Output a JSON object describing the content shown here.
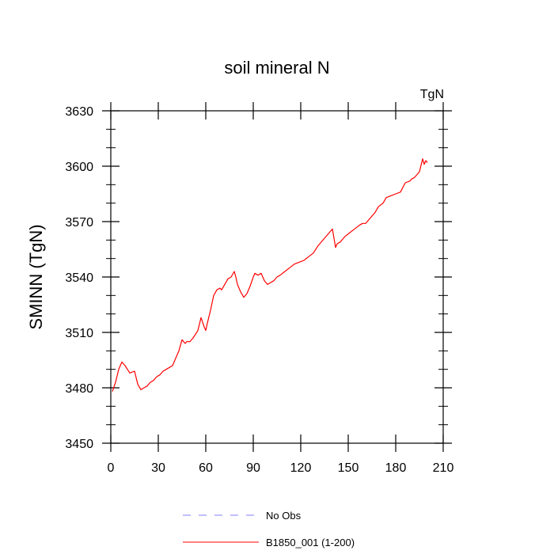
{
  "chart_data": {
    "type": "line",
    "title": "soil mineral N",
    "units_label": "TgN",
    "ylabel": "SMINN  (TgN)",
    "xlabel": "",
    "xlim": [
      0,
      210
    ],
    "ylim": [
      3450,
      3630
    ],
    "x_ticks": [
      0,
      30,
      60,
      90,
      120,
      150,
      180,
      210
    ],
    "x_tick_labels": [
      "0",
      "30",
      "60",
      "90",
      "120",
      "150",
      "180",
      "210"
    ],
    "y_ticks": [
      3450,
      3480,
      3510,
      3540,
      3570,
      3600,
      3630
    ],
    "y_tick_labels": [
      "3450",
      "3480",
      "3510",
      "3540",
      "3570",
      "3600",
      "3630"
    ],
    "grid": false,
    "legend_position": "bottom-center",
    "legend": [
      {
        "label": "No Obs",
        "color": "#8080ff",
        "dashed": true
      },
      {
        "label": "B1850_001 (1-200)",
        "color": "#ff0000",
        "dashed": false
      }
    ],
    "series": [
      {
        "name": "B1850_001 (1-200)",
        "color": "#ff0000",
        "x": [
          1,
          3,
          5,
          7,
          9,
          12,
          15,
          17,
          19,
          21,
          23,
          25,
          27,
          29,
          31,
          33,
          35,
          37,
          39,
          41,
          43,
          45,
          47,
          48,
          50,
          52,
          55,
          57,
          59,
          60,
          61,
          63,
          65,
          67,
          69,
          70,
          72,
          74,
          76,
          78,
          79,
          80,
          82,
          84,
          86,
          88,
          90,
          91,
          93,
          95,
          97,
          99,
          101,
          103,
          105,
          107,
          110,
          113,
          116,
          119,
          122,
          125,
          128,
          131,
          134,
          137,
          140,
          141,
          142,
          143,
          145,
          148,
          151,
          154,
          157,
          159,
          161,
          163,
          165,
          167,
          169,
          172,
          174,
          177,
          180,
          183,
          186,
          189,
          190,
          192,
          195,
          197,
          198,
          199,
          200
        ],
        "values": [
          3478,
          3483,
          3490,
          3494,
          3492,
          3488,
          3489,
          3482,
          3479,
          3480,
          3481,
          3483,
          3484,
          3486,
          3487,
          3489,
          3490,
          3491,
          3492,
          3496,
          3500,
          3506,
          3504,
          3505,
          3505,
          3507,
          3511,
          3518,
          3513,
          3511,
          3515,
          3522,
          3530,
          3533,
          3534,
          3533,
          3536,
          3539,
          3540,
          3543,
          3540,
          3536,
          3532,
          3529,
          3531,
          3535,
          3540,
          3542,
          3541,
          3542,
          3538,
          3536,
          3537,
          3538,
          3540,
          3541,
          3543,
          3545,
          3547,
          3548,
          3549,
          3551,
          3553,
          3557,
          3560,
          3563,
          3566,
          3561,
          3556,
          3558,
          3559,
          3562,
          3564,
          3566,
          3568,
          3569,
          3569,
          3571,
          3573,
          3575,
          3578,
          3580,
          3583,
          3584,
          3585,
          3586,
          3591,
          3592,
          3593,
          3594,
          3597,
          3604,
          3601,
          3603,
          3602
        ]
      }
    ]
  }
}
